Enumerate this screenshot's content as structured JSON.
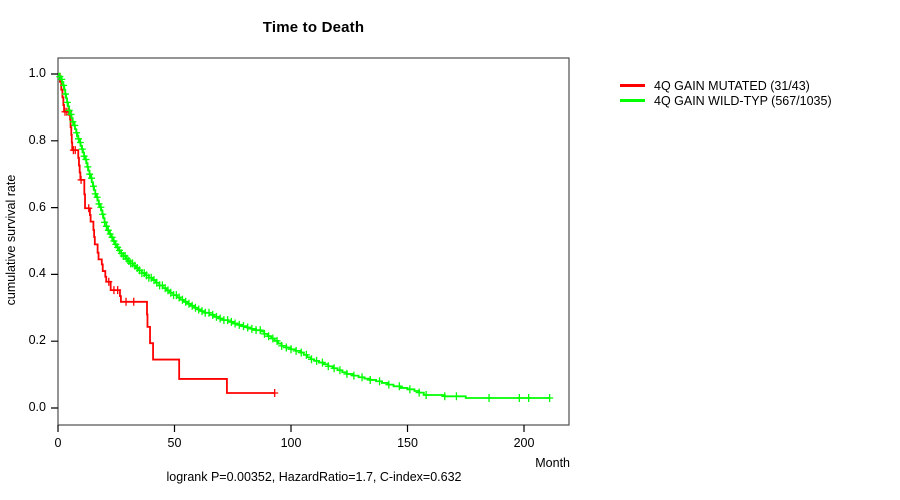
{
  "chart_data": {
    "type": "line",
    "subtype": "kaplan-meier-survival-step",
    "title": "Time to Death",
    "xlabel": "Month",
    "ylabel": "cumulative survival rate",
    "footer": "logrank P=0.00352, HazardRatio=1.7, C-index=0.632",
    "xlim": [
      0,
      219
    ],
    "ylim": [
      0,
      1.0
    ],
    "xticks": [
      0,
      50,
      100,
      150,
      200
    ],
    "yticks": [
      "0.0",
      "0.2",
      "0.4",
      "0.6",
      "0.8",
      "1.0"
    ],
    "grid": false,
    "legend_position": "top-right-outside",
    "box_color": "#4d4d4d",
    "axis_color": "#000000",
    "series": [
      {
        "name": "4Q GAIN MUTATED (31/43)",
        "color": "#ff0000",
        "end_time": 93,
        "steps": [
          [
            0,
            1.0
          ],
          [
            0.8,
            0.977
          ],
          [
            1.4,
            0.953
          ],
          [
            1.9,
            0.93
          ],
          [
            2.3,
            0.907
          ],
          [
            2.6,
            0.887
          ],
          [
            5.2,
            0.864
          ],
          [
            5.4,
            0.841
          ],
          [
            5.7,
            0.818
          ],
          [
            5.9,
            0.795
          ],
          [
            6.1,
            0.772
          ],
          [
            8.7,
            0.749
          ],
          [
            9,
            0.726
          ],
          [
            9.3,
            0.705
          ],
          [
            9.6,
            0.683
          ],
          [
            11.3,
            0.64
          ],
          [
            11.6,
            0.598
          ],
          [
            13.7,
            0.578
          ],
          [
            14,
            0.558
          ],
          [
            15.2,
            0.533
          ],
          [
            15.5,
            0.512
          ],
          [
            15.8,
            0.49
          ],
          [
            17,
            0.465
          ],
          [
            17.4,
            0.445
          ],
          [
            18.8,
            0.43
          ],
          [
            19.2,
            0.41
          ],
          [
            20.3,
            0.393
          ],
          [
            20.7,
            0.378
          ],
          [
            22.6,
            0.353
          ],
          [
            26.6,
            0.335
          ],
          [
            27,
            0.318
          ],
          [
            38.2,
            0.28
          ],
          [
            38.4,
            0.243
          ],
          [
            39.5,
            0.194
          ],
          [
            40.8,
            0.145
          ],
          [
            52,
            0.087
          ],
          [
            72.5,
            0.045
          ]
        ],
        "censor_times": [
          3.0,
          3.8,
          4.6,
          6.6,
          7.4,
          9.9,
          13.2,
          21.8,
          24.0,
          25.6,
          29.2,
          32.5,
          93
        ]
      },
      {
        "name": "4Q GAIN WILD-TYP (567/1035)",
        "color": "#00ff00",
        "end_time": 211,
        "steps": [
          [
            0,
            1.0
          ],
          [
            0.7,
            0.992
          ],
          [
            1.2,
            0.984
          ],
          [
            1.7,
            0.976
          ],
          [
            2.2,
            0.966
          ],
          [
            2.7,
            0.953
          ],
          [
            3.1,
            0.94
          ],
          [
            3.5,
            0.927
          ],
          [
            3.9,
            0.915
          ],
          [
            4.3,
            0.903
          ],
          [
            4.8,
            0.891
          ],
          [
            5.3,
            0.879
          ],
          [
            5.8,
            0.868
          ],
          [
            6.3,
            0.857
          ],
          [
            6.8,
            0.846
          ],
          [
            7.3,
            0.835
          ],
          [
            7.8,
            0.824
          ],
          [
            8.3,
            0.813
          ],
          [
            8.7,
            0.806
          ],
          [
            9.2,
            0.795
          ],
          [
            9.7,
            0.785
          ],
          [
            10.2,
            0.775
          ],
          [
            10.7,
            0.765
          ],
          [
            11.2,
            0.754
          ],
          [
            11.7,
            0.744
          ],
          [
            12.2,
            0.733
          ],
          [
            12.6,
            0.722
          ],
          [
            13,
            0.711
          ],
          [
            13.5,
            0.7
          ],
          [
            14,
            0.688
          ],
          [
            14.5,
            0.676
          ],
          [
            15,
            0.664
          ],
          [
            15.5,
            0.652
          ],
          [
            16,
            0.641
          ],
          [
            16.5,
            0.631
          ],
          [
            17,
            0.621
          ],
          [
            17.5,
            0.611
          ],
          [
            18,
            0.601
          ],
          [
            18.5,
            0.592
          ],
          [
            19,
            0.58
          ],
          [
            19.5,
            0.568
          ],
          [
            20,
            0.556
          ],
          [
            20.7,
            0.544
          ],
          [
            21.4,
            0.532
          ],
          [
            22.1,
            0.521
          ],
          [
            22.8,
            0.511
          ],
          [
            23.5,
            0.5
          ],
          [
            24.4,
            0.49
          ],
          [
            25.3,
            0.481
          ],
          [
            26.2,
            0.472
          ],
          [
            27.1,
            0.463
          ],
          [
            28,
            0.455
          ],
          [
            29,
            0.447
          ],
          [
            30,
            0.44
          ],
          [
            31,
            0.433
          ],
          [
            32.2,
            0.426
          ],
          [
            33.4,
            0.419
          ],
          [
            34.7,
            0.412
          ],
          [
            36,
            0.404
          ],
          [
            37.5,
            0.397
          ],
          [
            39,
            0.39
          ],
          [
            40.5,
            0.383
          ],
          [
            42,
            0.375
          ],
          [
            43.5,
            0.367
          ],
          [
            45,
            0.359
          ],
          [
            46.5,
            0.352
          ],
          [
            48,
            0.345
          ],
          [
            49.5,
            0.338
          ],
          [
            51,
            0.331
          ],
          [
            52.5,
            0.324
          ],
          [
            54,
            0.318
          ],
          [
            55.5,
            0.312
          ],
          [
            57,
            0.306
          ],
          [
            58.5,
            0.3
          ],
          [
            60,
            0.295
          ],
          [
            61.5,
            0.29
          ],
          [
            63,
            0.285
          ],
          [
            65,
            0.279
          ],
          [
            67,
            0.273
          ],
          [
            69,
            0.268
          ],
          [
            71,
            0.263
          ],
          [
            73,
            0.258
          ],
          [
            75,
            0.253
          ],
          [
            77,
            0.249
          ],
          [
            79,
            0.245
          ],
          [
            81,
            0.241
          ],
          [
            83,
            0.237
          ],
          [
            85,
            0.233
          ],
          [
            87,
            0.229
          ],
          [
            88.5,
            0.222
          ],
          [
            90,
            0.215
          ],
          [
            91.5,
            0.208
          ],
          [
            93,
            0.201
          ],
          [
            94.5,
            0.193
          ],
          [
            96,
            0.186
          ],
          [
            98,
            0.181
          ],
          [
            100,
            0.176
          ],
          [
            102,
            0.171
          ],
          [
            104,
            0.166
          ],
          [
            105.5,
            0.159
          ],
          [
            107,
            0.152
          ],
          [
            108.5,
            0.146
          ],
          [
            110,
            0.141
          ],
          [
            112,
            0.136
          ],
          [
            114,
            0.131
          ],
          [
            116,
            0.125
          ],
          [
            118,
            0.119
          ],
          [
            120,
            0.113
          ],
          [
            122,
            0.107
          ],
          [
            124,
            0.102
          ],
          [
            126.5,
            0.097
          ],
          [
            129,
            0.092
          ],
          [
            131.5,
            0.088
          ],
          [
            134,
            0.084
          ],
          [
            136.5,
            0.08
          ],
          [
            139,
            0.075
          ],
          [
            141.5,
            0.07
          ],
          [
            144,
            0.065
          ],
          [
            147,
            0.06
          ],
          [
            150,
            0.056
          ],
          [
            153,
            0.051
          ],
          [
            155,
            0.046
          ],
          [
            157,
            0.039
          ],
          [
            166,
            0.035
          ],
          [
            175,
            0.03
          ]
        ],
        "censor_times": [
          0.8,
          1.6,
          2.4,
          3.2,
          4.0,
          4.8,
          5.6,
          6.4,
          7.2,
          8.0,
          8.8,
          9.6,
          10.4,
          11.2,
          12.0,
          12.8,
          13.6,
          14.4,
          15.2,
          16.0,
          16.8,
          17.6,
          18.4,
          19.2,
          20.0,
          20.8,
          21.6,
          22.4,
          23.2,
          24.0,
          24.8,
          25.6,
          26.4,
          27.2,
          28.0,
          28.8,
          29.6,
          30.4,
          31.2,
          32.0,
          33.0,
          34.0,
          35.0,
          36.0,
          37.0,
          38.0,
          39.0,
          40.0,
          41.2,
          42.4,
          43.6,
          44.8,
          46.0,
          47.2,
          48.4,
          49.6,
          50.8,
          52.0,
          53.4,
          54.8,
          56.2,
          57.6,
          59.0,
          60.4,
          61.8,
          63.2,
          64.8,
          66.4,
          68.0,
          69.6,
          71.2,
          72.8,
          74.4,
          76.0,
          77.8,
          79.6,
          81.4,
          83.2,
          85.0,
          86.8,
          88.6,
          90.4,
          92.2,
          94.0,
          96.0,
          98.0,
          100.0,
          102.2,
          104.4,
          106.6,
          108.8,
          111.0,
          113.5,
          116.0,
          118.5,
          121.0,
          124.0,
          127.0,
          130.5,
          134.0,
          138.0,
          142.0,
          146.5,
          151.0,
          155.0,
          158.0,
          166.0,
          171.0,
          185.0,
          198.0,
          202.0,
          211.0
        ]
      }
    ]
  }
}
